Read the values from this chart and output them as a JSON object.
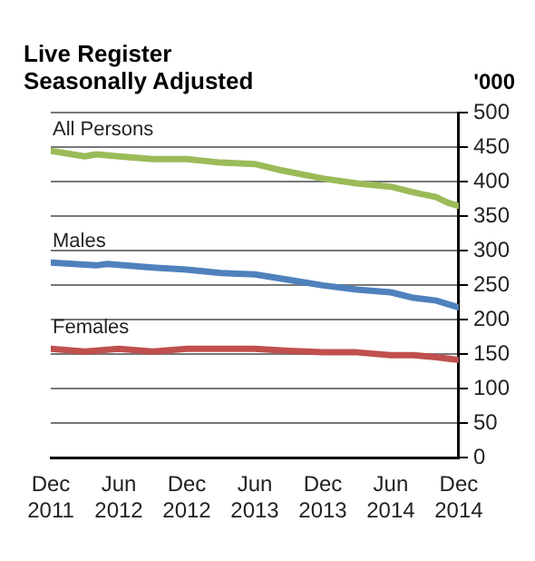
{
  "chart_data": {
    "type": "line",
    "title": "Live Register",
    "subtitle": "Seasonally Adjusted",
    "ylabel": "'000",
    "series": [
      {
        "name": "All Persons",
        "color": "#9bbb59",
        "x": [
          "2011-12",
          "2012-03",
          "2012-04",
          "2012-06",
          "2012-09",
          "2012-12",
          "2013-03",
          "2013-06",
          "2013-08",
          "2013-12",
          "2014-03",
          "2014-06",
          "2014-08",
          "2014-10",
          "2014-11",
          "2014-12"
        ],
        "values": [
          445,
          437,
          440,
          437,
          433,
          433,
          428,
          426,
          418,
          405,
          398,
          393,
          385,
          378,
          370,
          365
        ]
      },
      {
        "name": "Males",
        "color": "#4f81bd",
        "x": [
          "2011-12",
          "2012-03",
          "2012-04",
          "2012-05",
          "2012-09",
          "2012-12",
          "2013-03",
          "2013-06",
          "2013-09",
          "2013-12",
          "2014-03",
          "2014-06",
          "2014-08",
          "2014-10",
          "2014-12"
        ],
        "values": [
          283,
          280,
          279,
          281,
          276,
          273,
          268,
          266,
          258,
          250,
          244,
          240,
          232,
          228,
          218
        ]
      },
      {
        "name": "Females",
        "color": "#c0504d",
        "x": [
          "2011-12",
          "2012-03",
          "2012-06",
          "2012-09",
          "2012-12",
          "2013-06",
          "2013-09",
          "2013-12",
          "2014-03",
          "2014-06",
          "2014-08",
          "2014-10",
          "2014-12"
        ],
        "values": [
          158,
          154,
          158,
          154,
          158,
          158,
          155,
          153,
          153,
          149,
          149,
          146,
          142
        ]
      }
    ],
    "xlim": [
      "2011-12",
      "2014-12"
    ],
    "xticks": [
      {
        "value": "2011-12",
        "label": "Dec\n2011"
      },
      {
        "value": "2012-06",
        "label": "Jun\n2012"
      },
      {
        "value": "2012-12",
        "label": "Dec\n2012"
      },
      {
        "value": "2013-06",
        "label": "Jun\n2013"
      },
      {
        "value": "2013-12",
        "label": "Dec\n2013"
      },
      {
        "value": "2014-06",
        "label": "Jun\n2014"
      },
      {
        "value": "2014-12",
        "label": "Dec\n2014"
      }
    ],
    "ylim": [
      0,
      500
    ],
    "yticks": [
      0,
      50,
      100,
      150,
      200,
      250,
      300,
      350,
      400,
      450,
      500
    ],
    "grid": "y",
    "legend": false,
    "marker": "none",
    "line_style": "solid"
  }
}
